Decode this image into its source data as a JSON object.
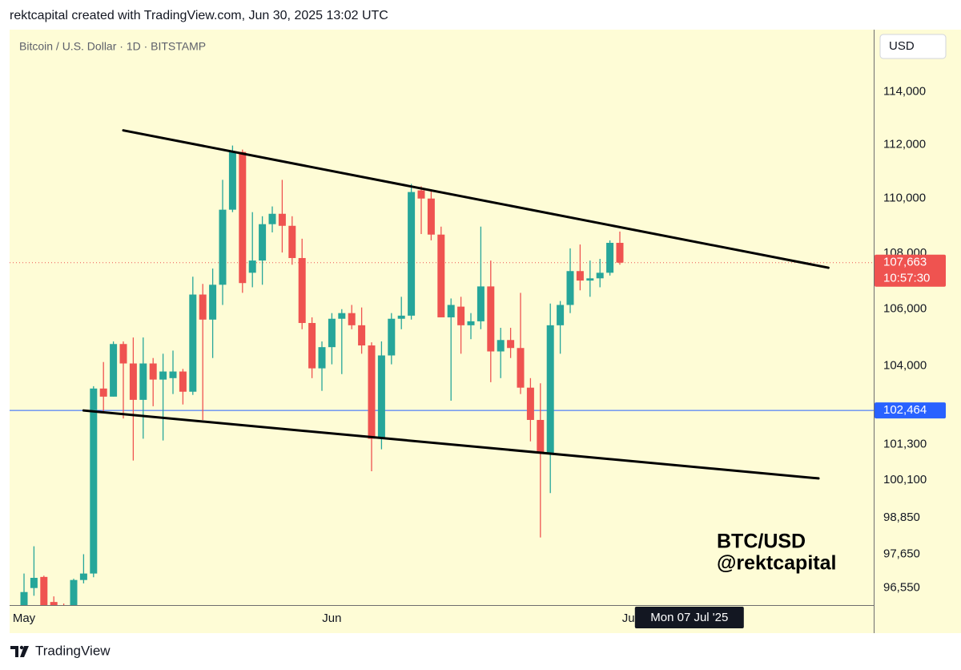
{
  "chart_data": {
    "type": "candlestick",
    "credit": "rektcapital created with TradingView.com, Jun 30, 2025 13:02 UTC",
    "title": "Bitcoin / U.S. Dollar · 1D · BITSTAMP",
    "currency": "USD",
    "watermark": [
      "BTC/USD",
      "@rektcapital"
    ],
    "footer": "TradingView",
    "crosshair_x": "2025-07-07",
    "crosshair_label": "Mon 07 Jul '25",
    "log_scale": true,
    "up_color": "#26a69a",
    "down_color": "#ef5350",
    "ylim": [
      96000,
      116400
    ],
    "yticks": [
      {
        "value": 96550,
        "label": "96,550"
      },
      {
        "value": 97650,
        "label": "97,650"
      },
      {
        "value": 98850,
        "label": "98,850"
      },
      {
        "value": 100100,
        "label": "100,100"
      },
      {
        "value": 101300,
        "label": "101,300"
      },
      {
        "value": 104000,
        "label": "104,000"
      },
      {
        "value": 106000,
        "label": "106,000"
      },
      {
        "value": 108000,
        "label": "108,000"
      },
      {
        "value": 110000,
        "label": "110,000"
      },
      {
        "value": 112000,
        "label": "112,000"
      },
      {
        "value": 114000,
        "label": "114,000"
      }
    ],
    "xticks": [
      {
        "value": "2025-05-01",
        "label": "May"
      },
      {
        "value": "2025-06-01",
        "label": "Jun"
      },
      {
        "value": "2025-07-01",
        "label": "Jul"
      }
    ],
    "x": [
      "2025-05-01",
      "2025-05-02",
      "2025-05-03",
      "2025-05-04",
      "2025-05-05",
      "2025-05-06",
      "2025-05-07",
      "2025-05-08",
      "2025-05-09",
      "2025-05-10",
      "2025-05-11",
      "2025-05-12",
      "2025-05-13",
      "2025-05-14",
      "2025-05-15",
      "2025-05-16",
      "2025-05-17",
      "2025-05-18",
      "2025-05-19",
      "2025-05-20",
      "2025-05-21",
      "2025-05-22",
      "2025-05-23",
      "2025-05-24",
      "2025-05-25",
      "2025-05-26",
      "2025-05-27",
      "2025-05-28",
      "2025-05-29",
      "2025-05-30",
      "2025-05-31",
      "2025-06-01",
      "2025-06-02",
      "2025-06-03",
      "2025-06-04",
      "2025-06-05",
      "2025-06-06",
      "2025-06-07",
      "2025-06-08",
      "2025-06-09",
      "2025-06-10",
      "2025-06-11",
      "2025-06-12",
      "2025-06-13",
      "2025-06-14",
      "2025-06-15",
      "2025-06-16",
      "2025-06-17",
      "2025-06-18",
      "2025-06-19",
      "2025-06-20",
      "2025-06-21",
      "2025-06-22",
      "2025-06-23",
      "2025-06-24",
      "2025-06-25",
      "2025-06-26",
      "2025-06-27",
      "2025-06-28",
      "2025-06-29",
      "2025-06-30"
    ],
    "open": [
      96000,
      96550,
      96910,
      96100,
      95950,
      95900,
      96810,
      97020,
      103220,
      102940,
      104770,
      104090,
      102830,
      104090,
      103530,
      103580,
      103810,
      103110,
      106520,
      105630,
      106870,
      109590,
      111730,
      107300,
      107740,
      109060,
      109440,
      109000,
      107830,
      105510,
      103920,
      104660,
      105660,
      105860,
      105430,
      104720,
      101500,
      104370,
      105660,
      105770,
      110300,
      110000,
      108680,
      105710,
      106090,
      105430,
      105570,
      106810,
      104510,
      104910,
      104630,
      103250,
      102140,
      101000,
      105430,
      106150,
      107360,
      107020,
      107100,
      107300,
      108380
    ],
    "high": [
      97020,
      97910,
      96950,
      96280,
      96050,
      96850,
      97650,
      103300,
      104140,
      104860,
      104860,
      105000,
      105000,
      104280,
      104430,
      104540,
      103900,
      107160,
      106900,
      107450,
      110690,
      111970,
      111820,
      109500,
      109350,
      109710,
      110690,
      109350,
      108530,
      105710,
      104860,
      105860,
      106000,
      106150,
      106060,
      104830,
      104860,
      105860,
      106440,
      110540,
      110450,
      110300,
      108970,
      106380,
      106440,
      105860,
      108970,
      107740,
      105340,
      105340,
      106580,
      103580,
      103400,
      106200,
      106290,
      108180,
      108320,
      107740,
      107800,
      108470,
      108790
    ],
    "low": [
      95900,
      96300,
      95800,
      95800,
      95700,
      95800,
      96700,
      96900,
      102420,
      102940,
      102190,
      100760,
      101500,
      102610,
      101440,
      103030,
      102670,
      103000,
      102140,
      104280,
      106150,
      109500,
      106580,
      106780,
      106870,
      108760,
      108030,
      107590,
      105290,
      103580,
      103140,
      104060,
      103720,
      105290,
      104430,
      100400,
      101140,
      104060,
      105290,
      105630,
      108700,
      108470,
      105710,
      102800,
      104430,
      104940,
      105290,
      103440,
      103580,
      104280,
      103030,
      101410,
      98200,
      99670,
      104430,
      105860,
      106670,
      106440,
      106780,
      107200,
      107590
    ],
    "close": [
      96420,
      96880,
      95900,
      95950,
      95850,
      96810,
      97020,
      103220,
      102940,
      104770,
      104090,
      102830,
      104090,
      103530,
      103810,
      103810,
      103110,
      106520,
      105630,
      106870,
      109590,
      111730,
      106930,
      107740,
      109060,
      109440,
      109000,
      107830,
      105510,
      103920,
      104660,
      105660,
      105860,
      105430,
      104720,
      101500,
      104370,
      105660,
      105770,
      110240,
      110000,
      108680,
      105710,
      106150,
      105430,
      105570,
      106810,
      104510,
      104910,
      104630,
      103250,
      102140,
      101000,
      105430,
      106150,
      107360,
      107020,
      107100,
      107300,
      108380,
      107663
    ],
    "trendlines": [
      {
        "x": [
          "2025-05-11",
          "2025-07-21"
        ],
        "y": [
          112540,
          107480
        ]
      },
      {
        "x": [
          "2025-05-07",
          "2025-07-20"
        ],
        "y": [
          102464,
          100160
        ]
      }
    ],
    "hlines": [
      {
        "value": 102464,
        "label": "102,464",
        "color": "#2962ff",
        "style": "solid"
      },
      {
        "value": 107663,
        "label": "107,663",
        "sub_label": "10:57:30",
        "color": "#ef5350",
        "style": "dotted"
      }
    ]
  }
}
